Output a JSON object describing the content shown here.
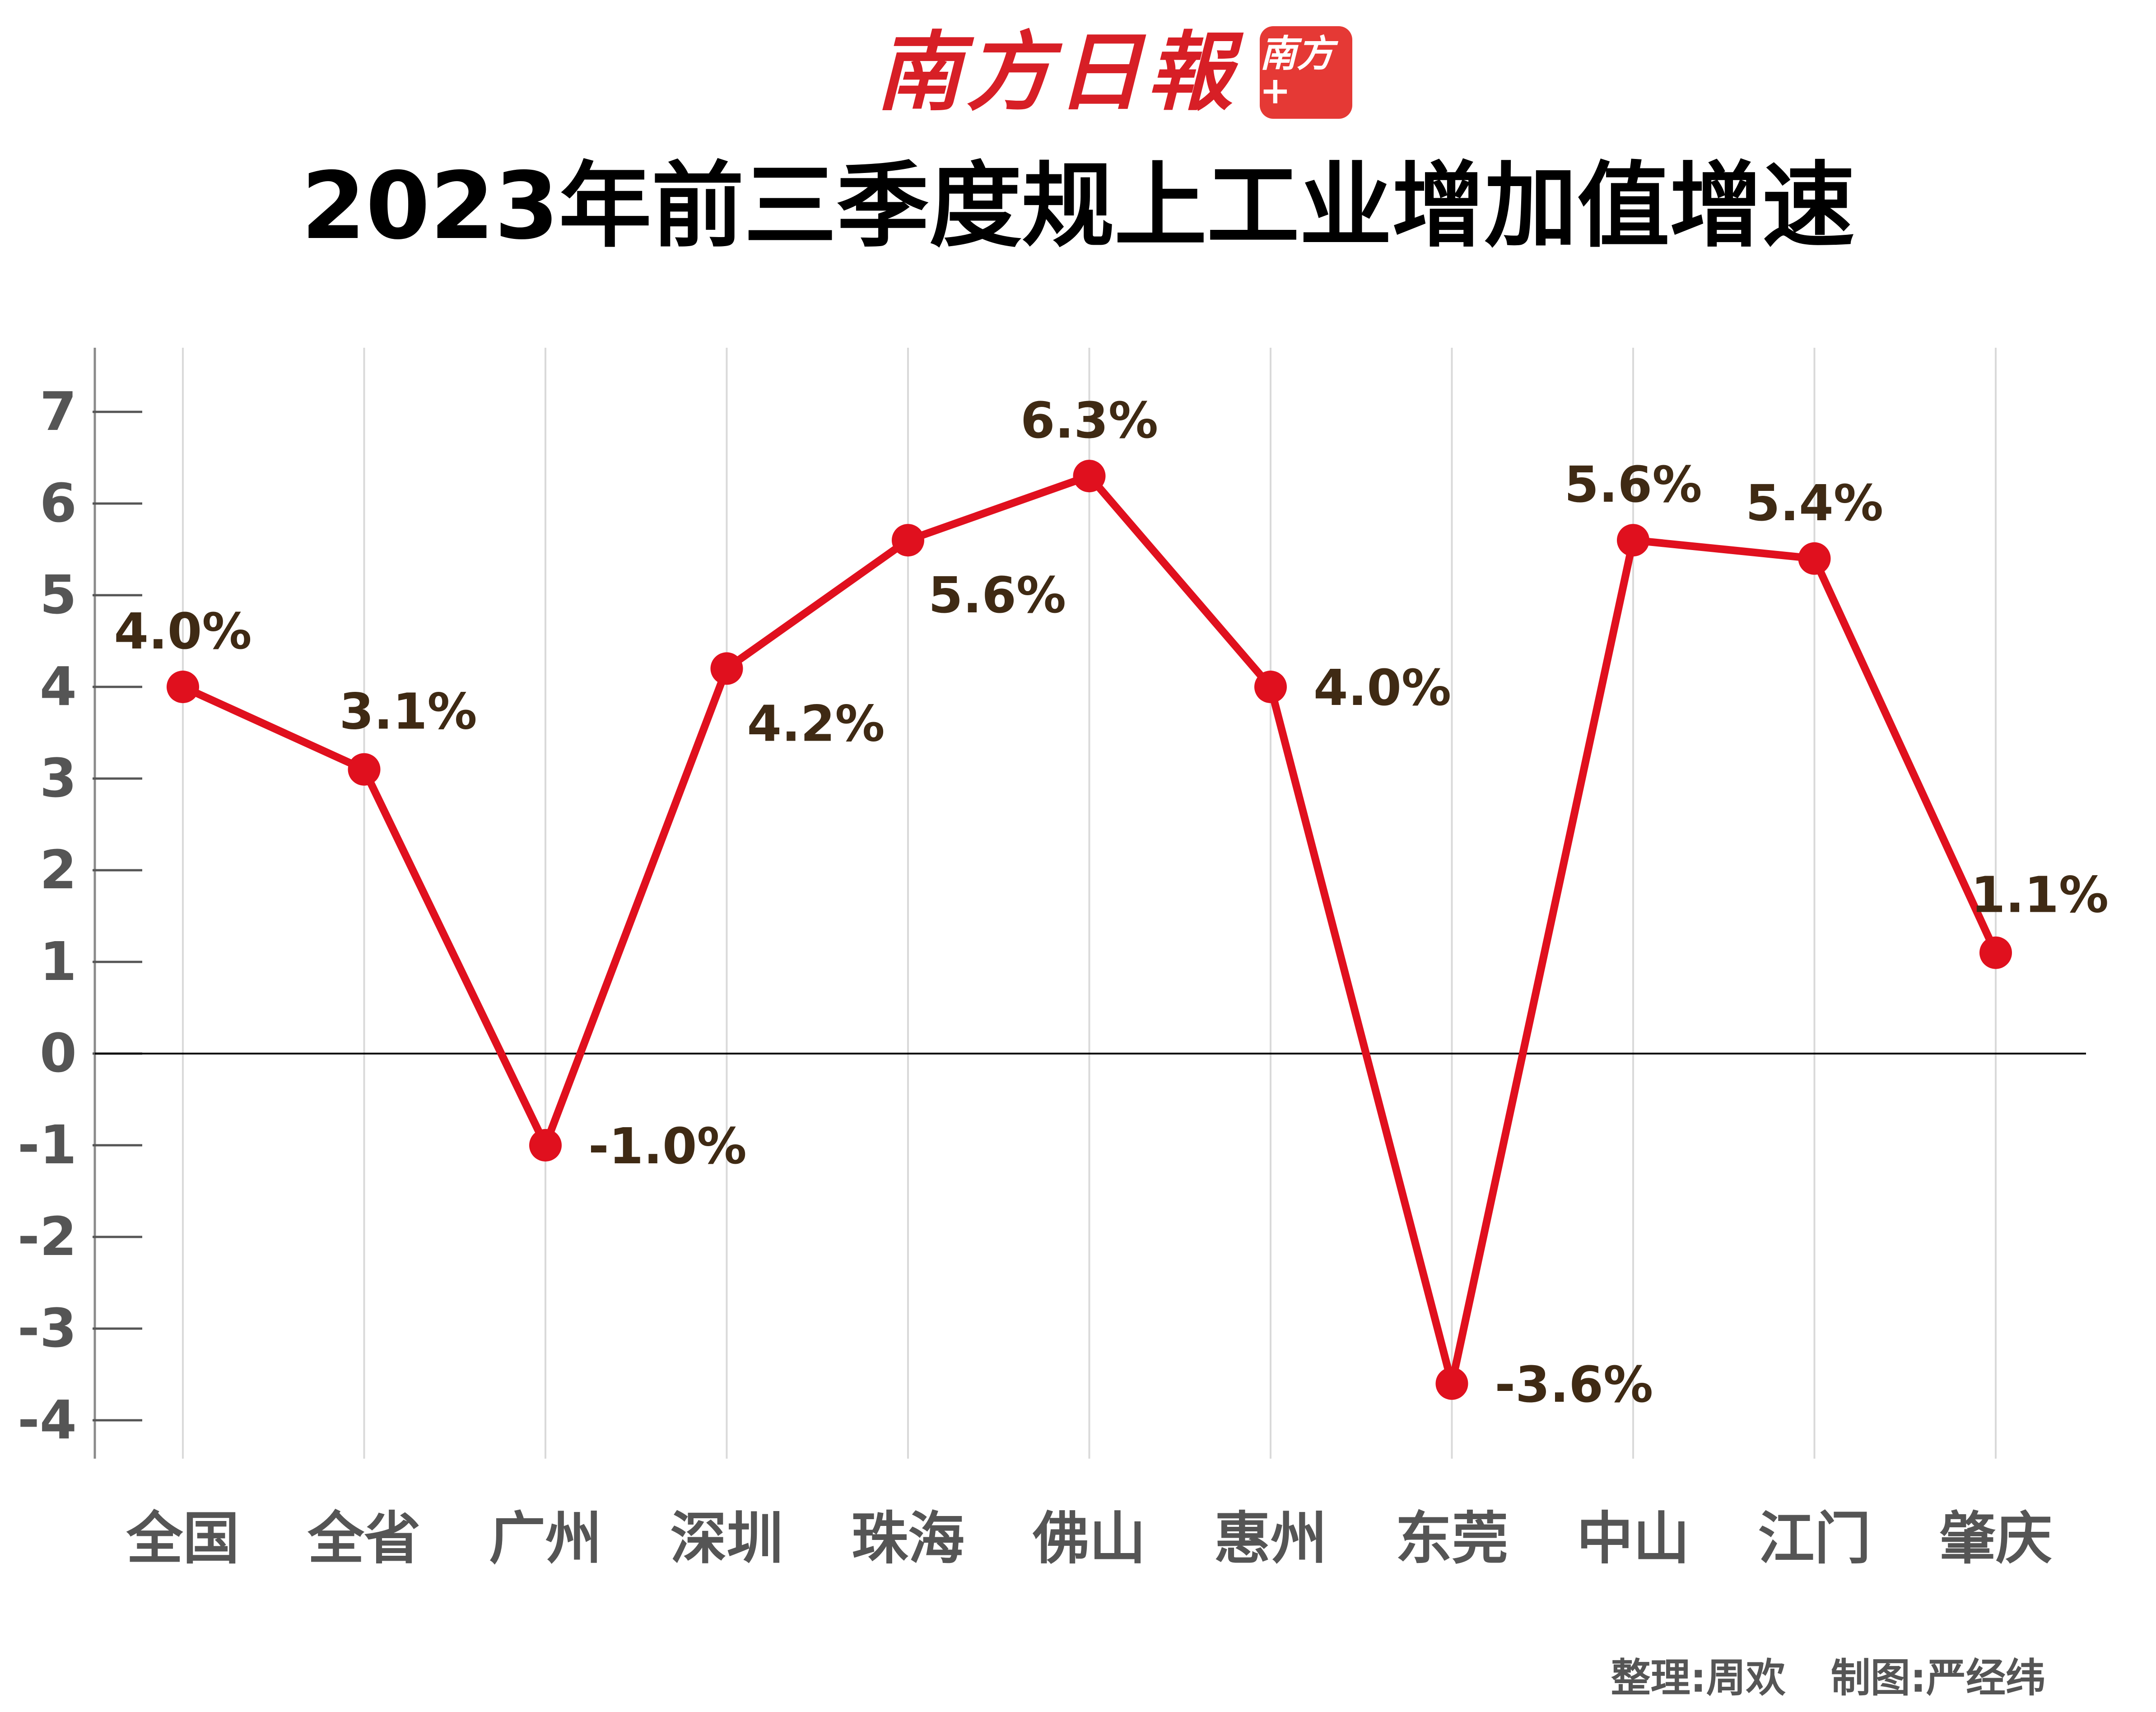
{
  "header": {
    "masthead": "南方日報",
    "app_badge": "南方+"
  },
  "title": "2023年前三季度规上工业增加值增速",
  "credits": {
    "organizer": "整理:周欢",
    "designer": "制图:严经纬"
  },
  "colors": {
    "brand": "#d71f26",
    "line": "#e0101e",
    "data_label": "#3f2a14",
    "axis_text": "#555555",
    "grid": "#d9d9d9"
  },
  "chart_data": {
    "type": "line",
    "title": "2023年前三季度规上工业增加值增速",
    "categories": [
      "全国",
      "全省",
      "广州",
      "深圳",
      "珠海",
      "佛山",
      "惠州",
      "东莞",
      "中山",
      "江门",
      "肇庆"
    ],
    "values": [
      4.0,
      3.1,
      -1.0,
      4.2,
      5.6,
      6.3,
      4.0,
      -3.6,
      5.6,
      5.4,
      1.1
    ],
    "data_labels": [
      "4.0%",
      "3.1%",
      "-1.0%",
      "4.2%",
      "5.6%",
      "6.3%",
      "4.0%",
      "-3.6%",
      "5.6%",
      "5.4%",
      "1.1%"
    ],
    "label_positions": [
      "above",
      "above-right",
      "right",
      "below-right",
      "below-right",
      "above",
      "right",
      "right",
      "above",
      "above",
      "above-right"
    ],
    "ylim": [
      -4.5,
      7.5
    ],
    "yticks": [
      7,
      6,
      5,
      4,
      3,
      2,
      1,
      0,
      -1,
      -2,
      -3,
      -4
    ],
    "xlabel": "",
    "ylabel": "",
    "grid": "vertical",
    "legend": "none"
  }
}
